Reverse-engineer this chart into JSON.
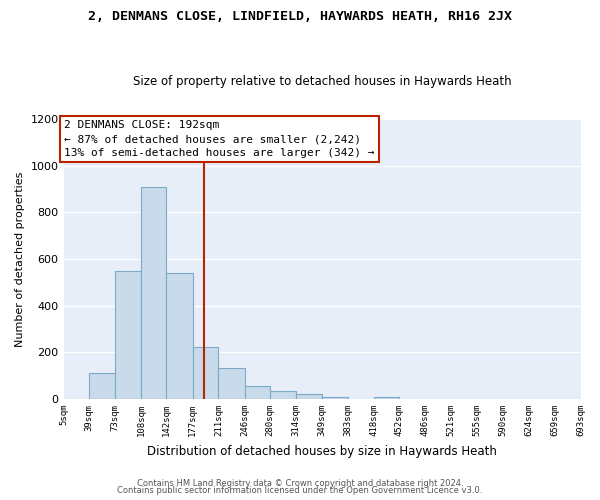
{
  "title1": "2, DENMANS CLOSE, LINDFIELD, HAYWARDS HEATH, RH16 2JX",
  "title2": "Size of property relative to detached houses in Haywards Heath",
  "xlabel": "Distribution of detached houses by size in Haywards Heath",
  "ylabel": "Number of detached properties",
  "footer1": "Contains HM Land Registry data © Crown copyright and database right 2024.",
  "footer2": "Contains public sector information licensed under the Open Government Licence v3.0.",
  "annotation_line1": "2 DENMANS CLOSE: 192sqm",
  "annotation_line2": "← 87% of detached houses are smaller (2,242)",
  "annotation_line3": "13% of semi-detached houses are larger (342) →",
  "bar_color": "#c9daea",
  "bar_edge_color": "#7aaac8",
  "vline_color": "#bb2200",
  "annotation_box_edge": "#bb2200",
  "figure_bg": "#ffffff",
  "axes_bg": "#e8eef8",
  "grid_color": "#ffffff",
  "bin_edges": [
    5,
    39,
    73,
    108,
    142,
    177,
    211,
    246,
    280,
    314,
    349,
    383,
    418,
    452,
    486,
    521,
    555,
    590,
    624,
    659,
    693
  ],
  "bin_labels": [
    "5sqm",
    "39sqm",
    "73sqm",
    "108sqm",
    "142sqm",
    "177sqm",
    "211sqm",
    "246sqm",
    "280sqm",
    "314sqm",
    "349sqm",
    "383sqm",
    "418sqm",
    "452sqm",
    "486sqm",
    "521sqm",
    "555sqm",
    "590sqm",
    "624sqm",
    "659sqm",
    "693sqm"
  ],
  "counts": [
    0,
    110,
    550,
    910,
    540,
    225,
    135,
    55,
    35,
    20,
    10,
    0,
    10,
    0,
    0,
    0,
    0,
    0,
    0,
    0
  ],
  "vline_x": 192,
  "ylim": [
    0,
    1200
  ],
  "yticks": [
    0,
    200,
    400,
    600,
    800,
    1000,
    1200
  ]
}
